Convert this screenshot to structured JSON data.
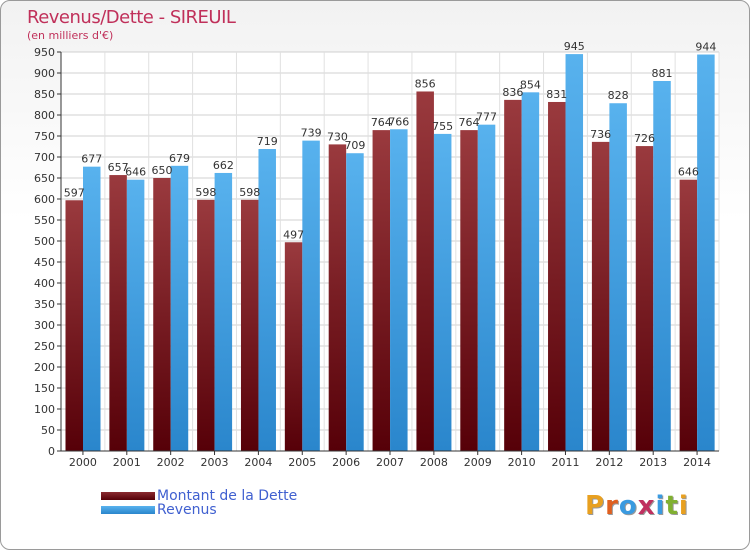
{
  "title": "Revenus/Dette - SIREUIL",
  "subtitle": "(en milliers d'€)",
  "logo_text": "Proxiti",
  "chart_data": {
    "type": "bar",
    "categories": [
      "2000",
      "2001",
      "2002",
      "2003",
      "2004",
      "2005",
      "2006",
      "2007",
      "2008",
      "2009",
      "2010",
      "2011",
      "2012",
      "2013",
      "2014"
    ],
    "series": [
      {
        "name": "Montant de la Dette",
        "color": "#6e1218",
        "values": [
          597,
          657,
          650,
          598,
          598,
          497,
          730,
          764,
          856,
          764,
          836,
          831,
          736,
          726,
          646
        ]
      },
      {
        "name": "Revenus",
        "color": "#3a9ae0",
        "values": [
          677,
          646,
          679,
          662,
          719,
          739,
          709,
          766,
          755,
          777,
          854,
          945,
          828,
          881,
          944
        ]
      }
    ],
    "yticks": [
      0,
      50,
      100,
      150,
      200,
      250,
      300,
      350,
      400,
      450,
      500,
      550,
      600,
      650,
      700,
      750,
      800,
      850,
      900,
      950
    ],
    "ylim": [
      0,
      950
    ],
    "grid": true,
    "legend_position": "bottom-left"
  }
}
